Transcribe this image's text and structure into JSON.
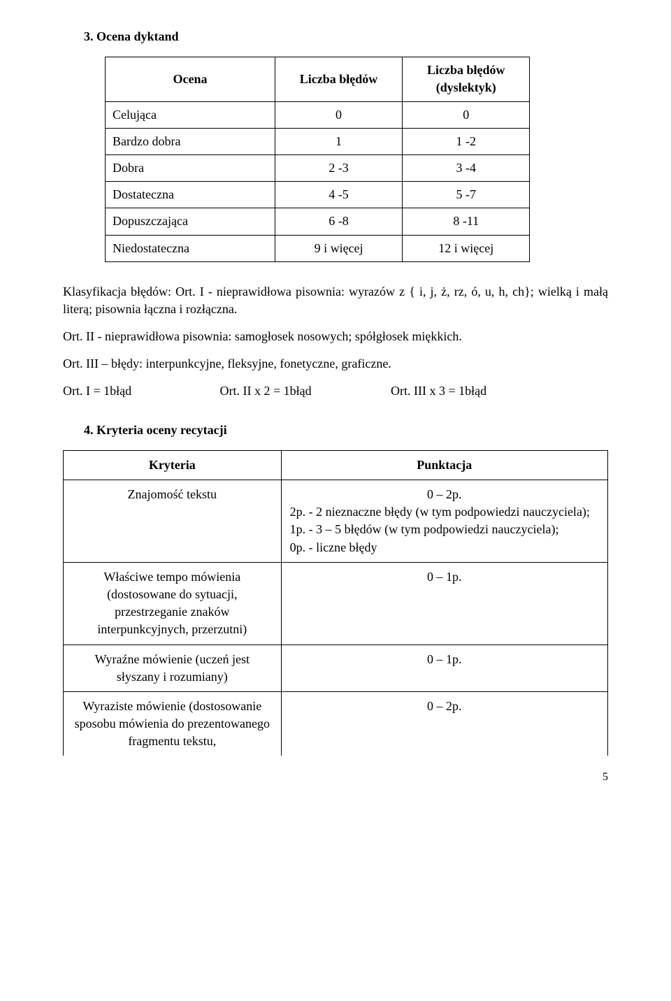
{
  "section3": {
    "title": "3. Ocena dyktand",
    "headers": {
      "col1": "Ocena",
      "col2": "Liczba błędów",
      "col3": "Liczba błędów (dyslektyk)"
    },
    "rows": [
      {
        "grade": "Celująca",
        "errors": "0",
        "errors_dys": "0"
      },
      {
        "grade": "Bardzo dobra",
        "errors": "1",
        "errors_dys": "1 -2"
      },
      {
        "grade": "Dobra",
        "errors": "2 -3",
        "errors_dys": "3 -4"
      },
      {
        "grade": "Dostateczna",
        "errors": "4 -5",
        "errors_dys": "5 -7"
      },
      {
        "grade": "Dopuszczająca",
        "errors": "6 -8",
        "errors_dys": "8 -11"
      },
      {
        "grade": "Niedostateczna",
        "errors": "9 i więcej",
        "errors_dys": "12 i więcej"
      }
    ]
  },
  "classification": {
    "line1": "Klasyfikacja błędów:   Ort. I  -  nieprawidłowa pisownia:  wyrazów z { i, j, ż, rz, ó, u, h, ch}; wielką  i małą literą;  pisownia łączna i rozłączna.",
    "line2": "Ort. II -  nieprawidłowa pisownia:  samogłosek nosowych; spółgłosek miękkich.",
    "line3": "Ort. III – błędy: interpunkcyjne, fleksyjne, fonetyczne, graficzne.",
    "eq1": "Ort. I    =  1błąd",
    "eq2": "Ort. II x 2  = 1błąd",
    "eq3": "Ort. III x 3  =  1błąd"
  },
  "section4": {
    "title": "4. Kryteria oceny recytacji",
    "headers": {
      "col1": "Kryteria",
      "col2": "Punktacja"
    },
    "rows": [
      {
        "criterion": "Znajomość tekstu",
        "points_main": "0 – 2p.",
        "points_detail": "2p. - 2 nieznaczne błędy (w tym podpowiedzi nauczyciela);\n1p. - 3 – 5 błędów (w tym podpowiedzi nauczyciela);\n0p. -  liczne błędy"
      },
      {
        "criterion": "Właściwe tempo mówienia (dostosowane do sytuacji, przestrzeganie znaków interpunkcyjnych, przerzutni)",
        "points_main": "0 – 1p.",
        "points_detail": ""
      },
      {
        "criterion": "Wyraźne mówienie (uczeń jest słyszany i rozumiany)",
        "points_main": "0 – 1p.",
        "points_detail": ""
      },
      {
        "criterion": "Wyraziste mówienie (dostosowanie sposobu mówienia do prezentowanego fragmentu tekstu,",
        "points_main": "0 – 2p.",
        "points_detail": ""
      }
    ]
  },
  "page_number": "5"
}
